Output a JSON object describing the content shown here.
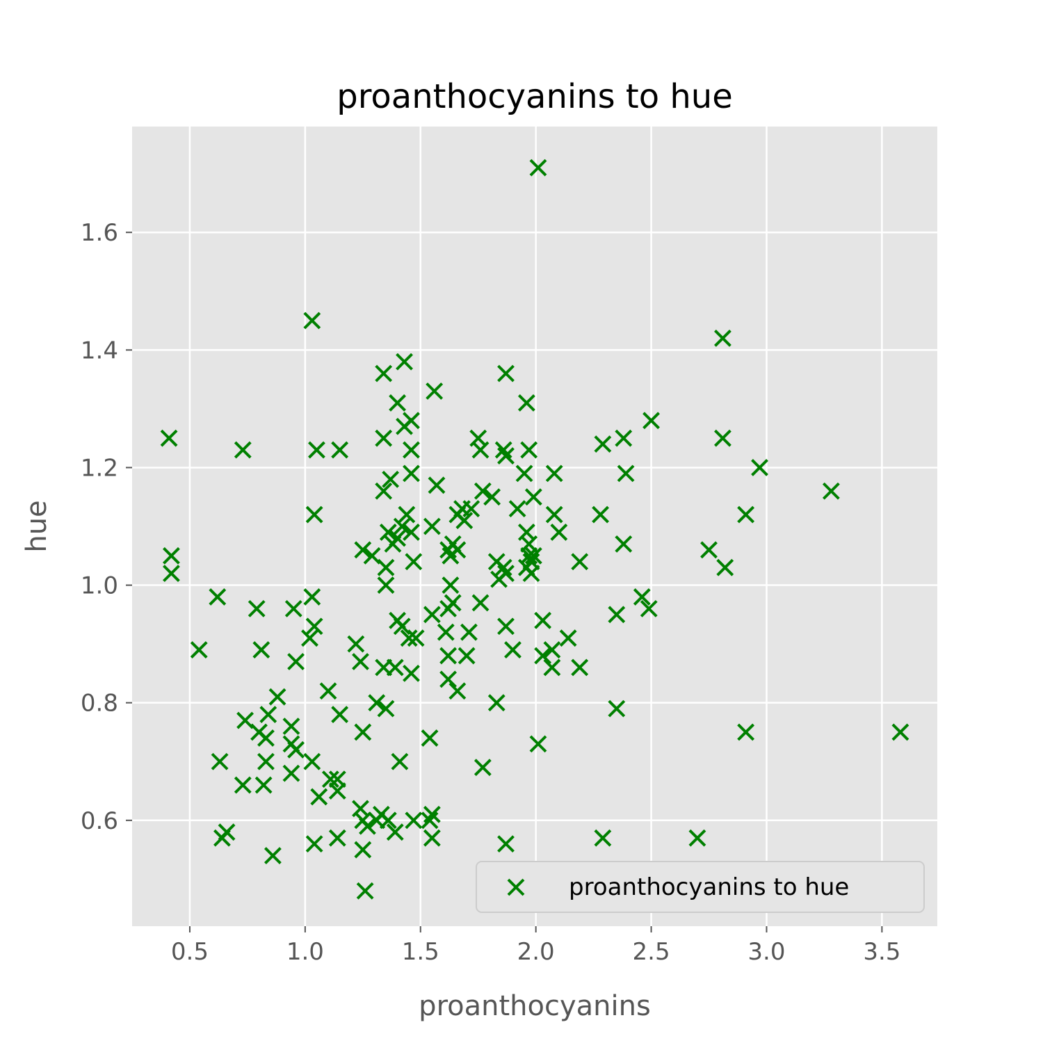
{
  "chart_data": {
    "type": "scatter",
    "title": "proanthocyanins to hue",
    "xlabel": "proanthocyanins",
    "ylabel": "hue",
    "xlim": [
      0.25,
      3.74
    ],
    "ylim": [
      0.42,
      1.78
    ],
    "x_ticks": [
      0.5,
      1.0,
      1.5,
      2.0,
      2.5,
      3.0,
      3.5
    ],
    "x_tick_labels": [
      "0.5",
      "1.0",
      "1.5",
      "2.0",
      "2.5",
      "3.0",
      "3.5"
    ],
    "y_ticks": [
      0.6,
      0.8,
      1.0,
      1.2,
      1.4,
      1.6
    ],
    "y_tick_labels": [
      "0.6",
      "0.8",
      "1.0",
      "1.2",
      "1.4",
      "1.6"
    ],
    "grid": true,
    "legend_position": "lower-right",
    "series": [
      {
        "name": "proanthocyanins to hue",
        "marker": "x",
        "color": "#008000",
        "points": [
          [
            2.01,
            1.71
          ],
          [
            1.03,
            1.45
          ],
          [
            2.81,
            1.42
          ],
          [
            1.43,
            1.38
          ],
          [
            1.34,
            1.36
          ],
          [
            1.87,
            1.36
          ],
          [
            1.56,
            1.33
          ],
          [
            1.4,
            1.31
          ],
          [
            1.96,
            1.31
          ],
          [
            1.43,
            1.27
          ],
          [
            1.46,
            1.28
          ],
          [
            2.5,
            1.28
          ],
          [
            0.41,
            1.25
          ],
          [
            1.34,
            1.25
          ],
          [
            1.75,
            1.25
          ],
          [
            2.38,
            1.25
          ],
          [
            2.81,
            1.25
          ],
          [
            2.29,
            1.24
          ],
          [
            0.73,
            1.23
          ],
          [
            1.05,
            1.23
          ],
          [
            1.15,
            1.23
          ],
          [
            1.46,
            1.23
          ],
          [
            1.76,
            1.23
          ],
          [
            1.86,
            1.23
          ],
          [
            1.97,
            1.23
          ],
          [
            1.87,
            1.22
          ],
          [
            2.97,
            1.2
          ],
          [
            1.46,
            1.19
          ],
          [
            1.95,
            1.19
          ],
          [
            2.08,
            1.19
          ],
          [
            2.39,
            1.19
          ],
          [
            1.37,
            1.18
          ],
          [
            1.57,
            1.17
          ],
          [
            1.34,
            1.16
          ],
          [
            1.77,
            1.16
          ],
          [
            3.28,
            1.16
          ],
          [
            1.81,
            1.15
          ],
          [
            1.99,
            1.15
          ],
          [
            1.68,
            1.13
          ],
          [
            1.72,
            1.13
          ],
          [
            1.92,
            1.13
          ],
          [
            1.04,
            1.12
          ],
          [
            1.44,
            1.12
          ],
          [
            2.28,
            1.12
          ],
          [
            2.08,
            1.12
          ],
          [
            2.91,
            1.12
          ],
          [
            1.66,
            1.12
          ],
          [
            1.69,
            1.11
          ],
          [
            1.42,
            1.1
          ],
          [
            1.55,
            1.1
          ],
          [
            1.36,
            1.09
          ],
          [
            1.46,
            1.09
          ],
          [
            1.96,
            1.09
          ],
          [
            2.1,
            1.09
          ],
          [
            1.4,
            1.08
          ],
          [
            1.64,
            1.07
          ],
          [
            1.97,
            1.07
          ],
          [
            2.38,
            1.07
          ],
          [
            1.38,
            1.07
          ],
          [
            1.25,
            1.06
          ],
          [
            1.62,
            1.06
          ],
          [
            1.66,
            1.06
          ],
          [
            2.75,
            1.06
          ],
          [
            1.97,
            1.05
          ],
          [
            1.99,
            1.05
          ],
          [
            0.42,
            1.05
          ],
          [
            1.29,
            1.05
          ],
          [
            1.63,
            1.05
          ],
          [
            1.98,
            1.04
          ],
          [
            1.83,
            1.04
          ],
          [
            1.47,
            1.04
          ],
          [
            2.19,
            1.04
          ],
          [
            1.35,
            1.03
          ],
          [
            1.86,
            1.03
          ],
          [
            1.96,
            1.03
          ],
          [
            2.82,
            1.03
          ],
          [
            0.42,
            1.02
          ],
          [
            1.87,
            1.02
          ],
          [
            1.98,
            1.02
          ],
          [
            1.84,
            1.01
          ],
          [
            1.35,
            1.0
          ],
          [
            1.63,
            1.0
          ],
          [
            1.03,
            0.98
          ],
          [
            0.62,
            0.98
          ],
          [
            2.46,
            0.98
          ],
          [
            1.64,
            0.97
          ],
          [
            1.76,
            0.97
          ],
          [
            0.79,
            0.96
          ],
          [
            0.95,
            0.96
          ],
          [
            1.62,
            0.96
          ],
          [
            2.49,
            0.96
          ],
          [
            1.55,
            0.95
          ],
          [
            2.35,
            0.95
          ],
          [
            1.4,
            0.94
          ],
          [
            2.03,
            0.94
          ],
          [
            1.04,
            0.93
          ],
          [
            1.42,
            0.93
          ],
          [
            1.87,
            0.93
          ],
          [
            1.61,
            0.92
          ],
          [
            1.71,
            0.92
          ],
          [
            1.45,
            0.91
          ],
          [
            1.48,
            0.91
          ],
          [
            2.14,
            0.91
          ],
          [
            1.02,
            0.91
          ],
          [
            1.22,
            0.9
          ],
          [
            0.54,
            0.89
          ],
          [
            0.81,
            0.89
          ],
          [
            1.9,
            0.89
          ],
          [
            2.07,
            0.89
          ],
          [
            2.03,
            0.88
          ],
          [
            1.62,
            0.88
          ],
          [
            1.7,
            0.88
          ],
          [
            1.24,
            0.87
          ],
          [
            0.96,
            0.87
          ],
          [
            1.34,
            0.86
          ],
          [
            1.39,
            0.86
          ],
          [
            2.07,
            0.86
          ],
          [
            2.19,
            0.86
          ],
          [
            1.46,
            0.85
          ],
          [
            1.62,
            0.84
          ],
          [
            1.66,
            0.82
          ],
          [
            1.1,
            0.82
          ],
          [
            0.88,
            0.81
          ],
          [
            1.83,
            0.8
          ],
          [
            1.31,
            0.8
          ],
          [
            1.35,
            0.79
          ],
          [
            2.35,
            0.79
          ],
          [
            0.84,
            0.78
          ],
          [
            1.15,
            0.78
          ],
          [
            0.74,
            0.77
          ],
          [
            0.94,
            0.76
          ],
          [
            0.8,
            0.75
          ],
          [
            1.25,
            0.75
          ],
          [
            2.91,
            0.75
          ],
          [
            3.58,
            0.75
          ],
          [
            0.83,
            0.74
          ],
          [
            1.54,
            0.74
          ],
          [
            0.94,
            0.73
          ],
          [
            2.01,
            0.73
          ],
          [
            0.96,
            0.72
          ],
          [
            0.63,
            0.7
          ],
          [
            0.83,
            0.7
          ],
          [
            1.03,
            0.7
          ],
          [
            1.41,
            0.7
          ],
          [
            1.77,
            0.69
          ],
          [
            0.94,
            0.68
          ],
          [
            1.11,
            0.67
          ],
          [
            1.14,
            0.67
          ],
          [
            0.73,
            0.66
          ],
          [
            0.82,
            0.66
          ],
          [
            1.14,
            0.65
          ],
          [
            1.06,
            0.64
          ],
          [
            1.24,
            0.62
          ],
          [
            1.33,
            0.61
          ],
          [
            1.55,
            0.61
          ],
          [
            1.25,
            0.6
          ],
          [
            1.31,
            0.6
          ],
          [
            1.36,
            0.6
          ],
          [
            1.47,
            0.6
          ],
          [
            1.54,
            0.6
          ],
          [
            1.27,
            0.59
          ],
          [
            1.39,
            0.58
          ],
          [
            0.66,
            0.58
          ],
          [
            0.64,
            0.57
          ],
          [
            1.14,
            0.57
          ],
          [
            1.55,
            0.57
          ],
          [
            2.29,
            0.57
          ],
          [
            2.7,
            0.57
          ],
          [
            1.04,
            0.56
          ],
          [
            1.87,
            0.56
          ],
          [
            1.25,
            0.55
          ],
          [
            0.86,
            0.54
          ],
          [
            1.26,
            0.48
          ]
        ]
      }
    ]
  }
}
